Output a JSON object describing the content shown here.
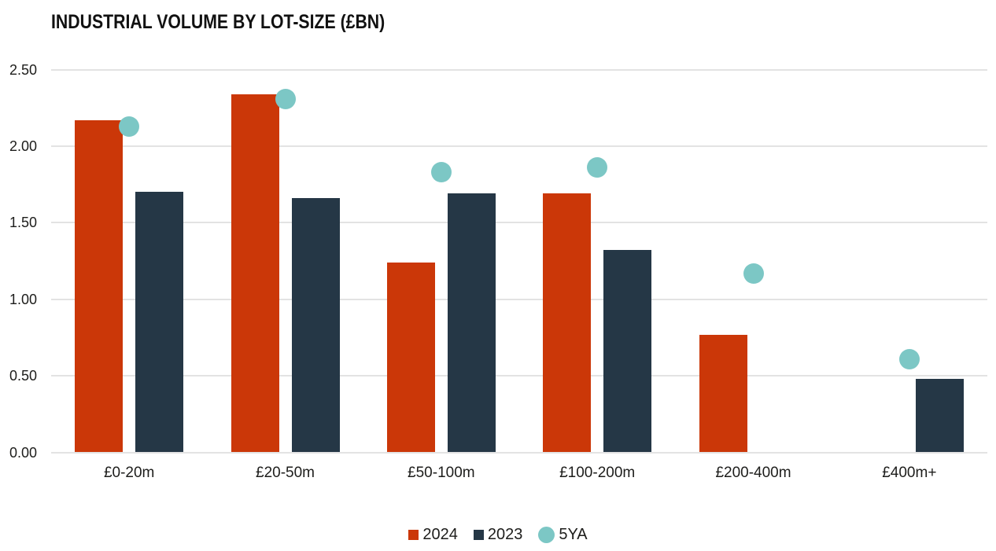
{
  "title": "INDUSTRIAL VOLUME BY LOT-SIZE (£BN)",
  "colors": {
    "series_2024": "#cb3708",
    "series_2023": "#253746",
    "series_5ya": "#7cc7c5",
    "gridline": "#e3e3e3",
    "text": "#1d1d1b"
  },
  "chart_data": {
    "type": "bar",
    "title": "INDUSTRIAL VOLUME BY LOT-SIZE (£BN)",
    "categories": [
      "£0-20m",
      "£20-50m",
      "£50-100m",
      "£100-200m",
      "£200-400m",
      "£400m+"
    ],
    "series": [
      {
        "name": "2024",
        "type": "bar",
        "color": "#cb3708",
        "values": [
          2.17,
          2.34,
          1.24,
          1.69,
          0.77,
          0
        ]
      },
      {
        "name": "2023",
        "type": "bar",
        "color": "#253746",
        "values": [
          1.7,
          1.66,
          1.69,
          1.32,
          0,
          0.48
        ]
      },
      {
        "name": "5YA",
        "type": "scatter",
        "color": "#7cc7c5",
        "values": [
          2.13,
          2.31,
          1.83,
          1.86,
          1.17,
          0.61
        ]
      }
    ],
    "xlabel": "",
    "ylabel": "",
    "ylim": [
      0,
      2.5
    ],
    "yticks": [
      {
        "value": 0.0,
        "label": "0.00"
      },
      {
        "value": 0.5,
        "label": "0.50"
      },
      {
        "value": 1.0,
        "label": "1.00"
      },
      {
        "value": 1.5,
        "label": "1.50"
      },
      {
        "value": 2.0,
        "label": "2.00"
      },
      {
        "value": 2.5,
        "label": "2.50"
      }
    ],
    "grid": true,
    "legend_position": "bottom-center"
  }
}
